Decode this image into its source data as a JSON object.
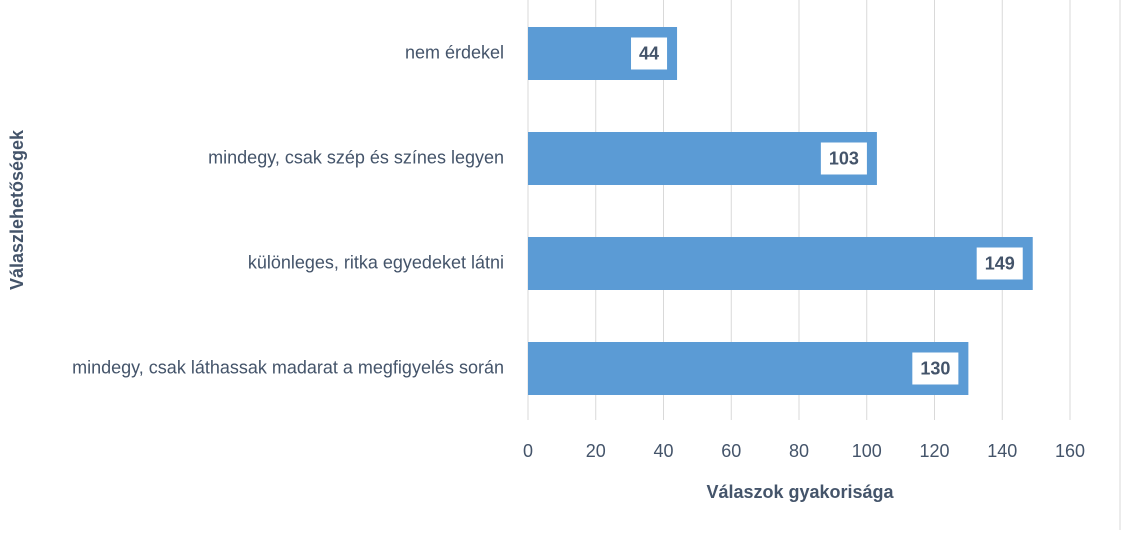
{
  "chart_data": {
    "type": "bar",
    "orientation": "horizontal",
    "xlabel": "Válaszok gyakorisága",
    "ylabel": "Válaszlehetőségek",
    "categories": [
      "nem érdekel",
      "mindegy, csak szép és színes legyen",
      "különleges, ritka egyedeket látni",
      "mindegy, csak láthassak madarat a megfigyelés során"
    ],
    "values": [
      44,
      103,
      149,
      130
    ],
    "color": "#5b9bd5",
    "xlim": [
      0,
      160
    ],
    "xticks": [
      0,
      20,
      40,
      60,
      80,
      100,
      120,
      140,
      160
    ],
    "grid": true
  }
}
